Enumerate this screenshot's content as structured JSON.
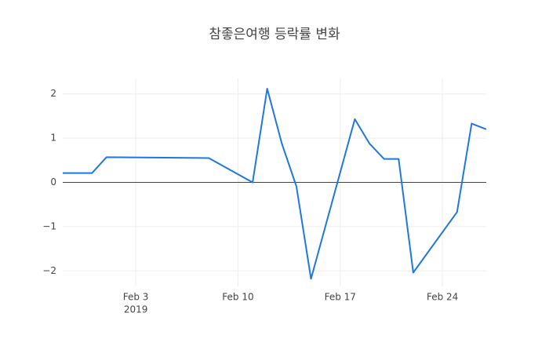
{
  "chart_data": {
    "type": "line",
    "title": "참좋은여행 등락률 변화",
    "x": [
      "2019-01-29",
      "2019-01-31",
      "2019-02-01",
      "2019-02-08",
      "2019-02-11",
      "2019-02-12",
      "2019-02-13",
      "2019-02-14",
      "2019-02-15",
      "2019-02-18",
      "2019-02-19",
      "2019-02-20",
      "2019-02-21",
      "2019-02-22",
      "2019-02-25",
      "2019-02-26",
      "2019-02-27"
    ],
    "values": [
      0.21,
      0.21,
      0.57,
      0.55,
      0,
      2.12,
      0.88,
      -0.09,
      -2.18,
      1.43,
      0.88,
      0.53,
      0.53,
      -2.04,
      -0.67,
      1.33,
      1.2
    ],
    "color": "#1f77e0",
    "xlim": [
      "2019-01-29",
      "2019-02-27"
    ],
    "xticks": [
      {
        "value": "2019-02-03",
        "label": "Feb 3"
      },
      {
        "value": "2019-02-10",
        "label": "Feb 10"
      },
      {
        "value": "2019-02-17",
        "label": "Feb 17"
      },
      {
        "value": "2019-02-24",
        "label": "Feb 24"
      }
    ],
    "x_year_label": "2019",
    "ylim": [
      -2.35,
      2.35
    ],
    "yticks": [
      {
        "value": -2,
        "label": "−2"
      },
      {
        "value": -1,
        "label": "−1"
      },
      0,
      1,
      2
    ],
    "grid": true
  }
}
